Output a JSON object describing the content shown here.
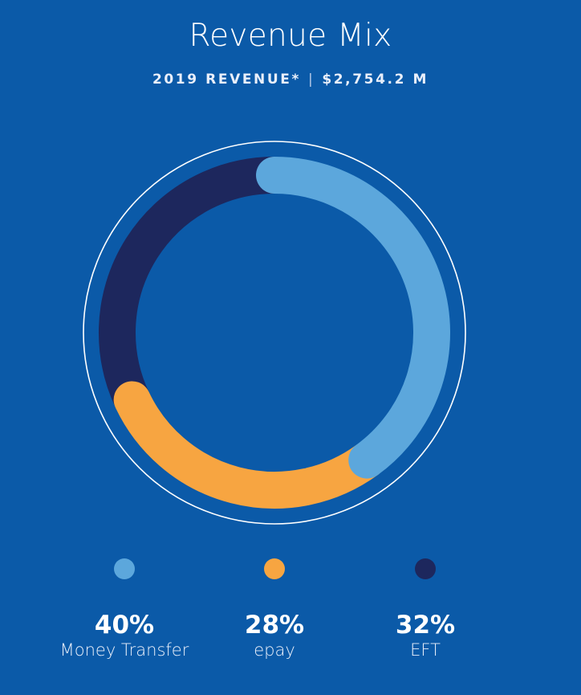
{
  "header": {
    "title": "Revenue Mix",
    "subtitle_left": "2019 REVENUE*",
    "subtitle_sep": "|",
    "subtitle_right": "$2,754.2 M"
  },
  "chart_data": {
    "type": "pie",
    "title": "Revenue Mix",
    "subtitle": "2019 REVENUE* | $2,754.2 M",
    "legend_position": "bottom",
    "series": [
      {
        "label": "Money Transfer",
        "value": 40,
        "display": "40%",
        "color": "#5ca7dc"
      },
      {
        "label": "epay",
        "value": 28,
        "display": "28%",
        "color": "#f7a541"
      },
      {
        "label": "EFT",
        "value": 32,
        "display": "32%",
        "color": "#1d275d"
      }
    ]
  },
  "colors": {
    "background": "#0b5aa8",
    "outline": "#ffffff"
  }
}
